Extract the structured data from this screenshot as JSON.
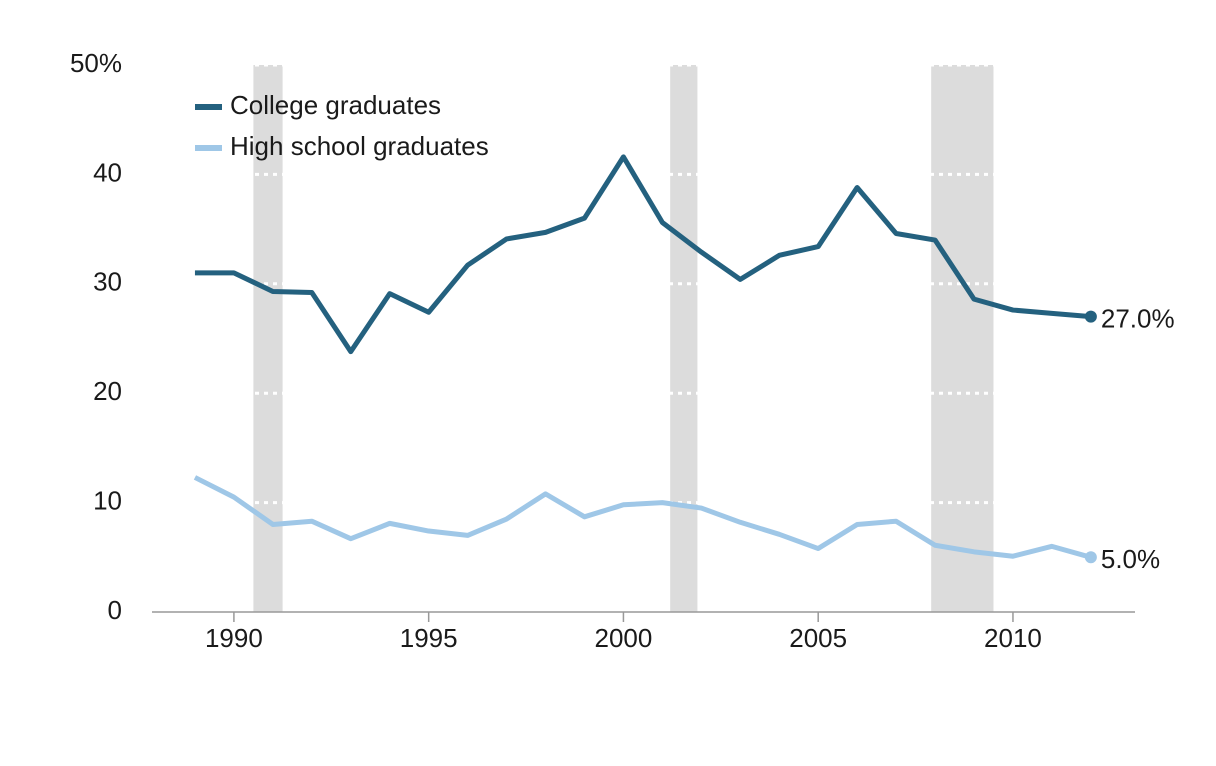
{
  "chart_data": {
    "type": "line",
    "x": [
      1989,
      1990,
      1991,
      1992,
      1993,
      1994,
      1995,
      1996,
      1997,
      1998,
      1999,
      2000,
      2001,
      2002,
      2003,
      2004,
      2005,
      2006,
      2007,
      2008,
      2009,
      2010,
      2011,
      2012
    ],
    "series": [
      {
        "name": "College graduates",
        "color": "#24617f",
        "values": [
          31.0,
          31.0,
          29.3,
          29.2,
          23.8,
          29.1,
          27.4,
          31.7,
          34.1,
          34.7,
          36.0,
          41.6,
          35.6,
          32.9,
          30.4,
          32.6,
          33.4,
          38.8,
          34.6,
          34.0,
          28.6,
          27.6,
          27.3,
          27.0
        ],
        "value_labels": [
          null,
          null,
          null,
          null,
          null,
          null,
          null,
          null,
          null,
          null,
          null,
          null,
          null,
          null,
          null,
          null,
          null,
          null,
          null,
          null,
          null,
          null,
          null,
          "27.0%"
        ]
      },
      {
        "name": "High school graduates",
        "color": "#9fc7e7",
        "values": [
          12.3,
          10.5,
          8.0,
          8.3,
          6.7,
          8.1,
          7.4,
          7.0,
          8.5,
          10.8,
          8.7,
          9.8,
          10.0,
          9.5,
          8.2,
          7.1,
          5.8,
          8.0,
          8.3,
          6.1,
          5.5,
          5.1,
          6.0,
          5.0
        ],
        "value_labels": [
          null,
          null,
          null,
          null,
          null,
          null,
          null,
          null,
          null,
          null,
          null,
          null,
          null,
          null,
          null,
          null,
          null,
          null,
          null,
          null,
          null,
          null,
          null,
          "5.0%"
        ]
      }
    ],
    "shaded_ranges": [
      [
        1990.5,
        1991.25
      ],
      [
        2001.2,
        2001.9
      ],
      [
        2007.9,
        2009.5
      ]
    ],
    "shade_color": "#dcdcdc",
    "xlim": [
      1988,
      2013.3
    ],
    "xticks": [
      1990,
      1995,
      2000,
      2005,
      2010
    ],
    "ylim": [
      0,
      50
    ],
    "yticks": [
      0,
      10,
      20,
      30,
      40,
      {
        "value": 50,
        "label": "50%"
      }
    ],
    "grid": true,
    "legend": "top-left"
  }
}
